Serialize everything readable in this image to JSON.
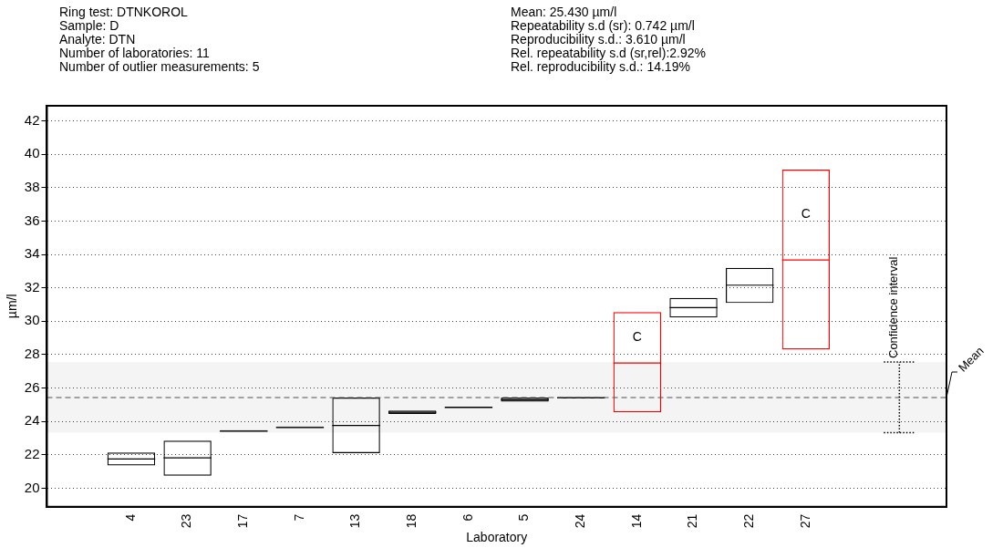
{
  "chart_data": {
    "type": "box",
    "annotations": [
      "Ring test: DTNKOROL",
      "Sample: D",
      "Analyte: DTN",
      "Number of laboratories: 11",
      "Number of outlier measurements: 5",
      "Mean: 25.430 µm/l",
      "Repeatability s.d (sr): 0.742 µm/l",
      "Reproducibility s.d.: 3.610 µm/l",
      "Rel. repeatability s.d (sr,rel):2.92%",
      "Rel. reproducibility s.d.: 14.19%",
      "C",
      "C"
    ],
    "xlabel": "Laboratory",
    "ylabel": "µm/l",
    "categories": [
      "4",
      "23",
      "17",
      "7",
      "13",
      "18",
      "6",
      "5",
      "24",
      "14",
      "21",
      "22",
      "27"
    ],
    "boxes": [
      {
        "low": 21.37,
        "q1": 21.37,
        "median": 21.75,
        "q3": 22.14,
        "high": 22.14
      },
      {
        "low": 20.75,
        "q1": 20.75,
        "median": 21.82,
        "q3": 22.85,
        "high": 22.85
      },
      {
        "low": 23.42,
        "q1": 23.42,
        "median": 23.42,
        "q3": 23.42,
        "high": 23.42
      },
      {
        "low": 23.64,
        "q1": 23.64,
        "median": 23.64,
        "q3": 23.64,
        "high": 23.64
      },
      {
        "low": 22.1,
        "q1": 22.1,
        "median": 23.76,
        "q3": 25.43,
        "high": 25.43
      },
      {
        "low": 24.45,
        "q1": 24.45,
        "median": 24.55,
        "q3": 24.65,
        "high": 24.65
      },
      {
        "low": 24.83,
        "q1": 24.83,
        "median": 24.83,
        "q3": 24.83,
        "high": 24.83
      },
      {
        "low": 25.19,
        "q1": 25.19,
        "median": 25.3,
        "q3": 25.43,
        "high": 25.43
      },
      {
        "low": 25.41,
        "q1": 25.41,
        "median": 25.41,
        "q3": 25.41,
        "high": 25.41
      },
      {
        "low": 24.55,
        "q1": 24.55,
        "median": 27.5,
        "q3": 30.55,
        "high": 30.55
      },
      {
        "low": 30.23,
        "q1": 30.23,
        "median": 30.81,
        "q3": 31.39,
        "high": 31.39
      },
      {
        "low": 31.09,
        "q1": 31.09,
        "median": 32.16,
        "q3": 33.2,
        "high": 33.2
      },
      {
        "low": 28.31,
        "q1": 28.31,
        "median": 33.67,
        "q3": 39.08,
        "high": 39.08
      }
    ],
    "colors": [
      "#000000",
      "#000000",
      "#000000",
      "#000000",
      "#000000",
      "#000000",
      "#000000",
      "#000000",
      "#000000",
      "#ff0000",
      "#000000",
      "#000000",
      "#ff0000"
    ],
    "ylim": [
      18.9,
      42.9
    ],
    "yticks": [
      20,
      22,
      24,
      26,
      28,
      30,
      32,
      34,
      36,
      38,
      40,
      42
    ],
    "grid": "y",
    "ref_lines": [
      {
        "axis": "y",
        "value": 25.43,
        "label": "Mean",
        "line_style": "dashed"
      }
    ],
    "bands": [
      {
        "axis": "y",
        "from": 23.33,
        "to": 27.56,
        "label": "Confidence interval"
      }
    ]
  }
}
